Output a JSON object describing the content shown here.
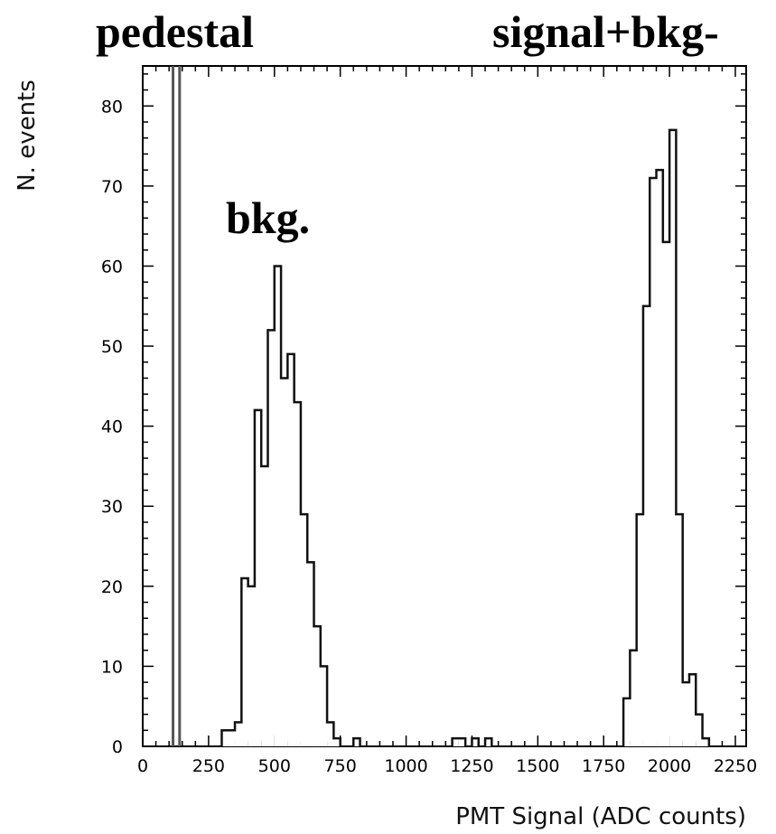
{
  "annotations": {
    "pedestal": "pedestal",
    "signal": "signal+bkg-",
    "bkg": "bkg."
  },
  "chart_data": {
    "type": "histogram",
    "xlabel": "PMT Signal (ADC counts)",
    "ylabel": "N. events",
    "xlim": [
      0,
      2250
    ],
    "ylim": [
      0,
      85
    ],
    "x_ticks": [
      0,
      250,
      500,
      750,
      1000,
      1250,
      1500,
      1750,
      2000,
      2250
    ],
    "y_ticks": [
      0,
      10,
      20,
      30,
      40,
      50,
      60,
      70,
      80
    ],
    "bin_width": 25,
    "bins": [
      {
        "x0": 300,
        "y": 2
      },
      {
        "x0": 325,
        "y": 2
      },
      {
        "x0": 350,
        "y": 3
      },
      {
        "x0": 375,
        "y": 21
      },
      {
        "x0": 400,
        "y": 20
      },
      {
        "x0": 425,
        "y": 42
      },
      {
        "x0": 450,
        "y": 35
      },
      {
        "x0": 475,
        "y": 52
      },
      {
        "x0": 500,
        "y": 60
      },
      {
        "x0": 525,
        "y": 46
      },
      {
        "x0": 550,
        "y": 49
      },
      {
        "x0": 575,
        "y": 43
      },
      {
        "x0": 600,
        "y": 29
      },
      {
        "x0": 625,
        "y": 23
      },
      {
        "x0": 650,
        "y": 15
      },
      {
        "x0": 675,
        "y": 10
      },
      {
        "x0": 700,
        "y": 3
      },
      {
        "x0": 725,
        "y": 1
      },
      {
        "x0": 800,
        "y": 1
      },
      {
        "x0": 1175,
        "y": 1
      },
      {
        "x0": 1200,
        "y": 1
      },
      {
        "x0": 1250,
        "y": 1
      },
      {
        "x0": 1300,
        "y": 1
      },
      {
        "x0": 1825,
        "y": 6
      },
      {
        "x0": 1850,
        "y": 12
      },
      {
        "x0": 1875,
        "y": 29
      },
      {
        "x0": 1900,
        "y": 55
      },
      {
        "x0": 1925,
        "y": 71
      },
      {
        "x0": 1950,
        "y": 72
      },
      {
        "x0": 1975,
        "y": 63
      },
      {
        "x0": 2000,
        "y": 77
      },
      {
        "x0": 2025,
        "y": 29
      },
      {
        "x0": 2050,
        "y": 8
      },
      {
        "x0": 2075,
        "y": 9
      },
      {
        "x0": 2100,
        "y": 4
      },
      {
        "x0": 2125,
        "y": 1
      }
    ],
    "pedestal_lines_x": [
      115,
      140
    ]
  }
}
